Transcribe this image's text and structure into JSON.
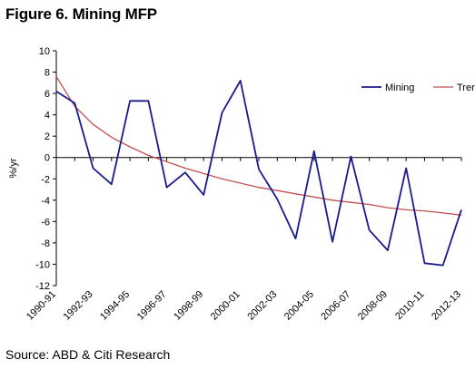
{
  "title": "Figure 6. Mining MFP",
  "source": "Source: ABD & Citi Research",
  "chart_data": {
    "type": "line",
    "ylabel": "%/yr",
    "xlabel": "",
    "ylim": [
      -12,
      10
    ],
    "yticks": [
      10,
      8,
      6,
      4,
      2,
      0,
      -2,
      -4,
      -6,
      -8,
      -10,
      -12
    ],
    "categories": [
      "1990-91",
      "1991-92",
      "1992-93",
      "1993-94",
      "1994-95",
      "1995-96",
      "1996-97",
      "1997-98",
      "1998-99",
      "1999-00",
      "2000-01",
      "2001-02",
      "2002-03",
      "2003-04",
      "2004-05",
      "2005-06",
      "2006-07",
      "2007-08",
      "2008-09",
      "2009-10",
      "2010-11",
      "2011-12",
      "2012-13"
    ],
    "x_tick_labels": [
      "1990-91",
      "1992-93",
      "1994-95",
      "1996-97",
      "1998-99",
      "2000-01",
      "2002-03",
      "2004-05",
      "2006-07",
      "2008-09",
      "2010-11",
      "2012-13"
    ],
    "legend_position": "top-right",
    "grid": false,
    "series": [
      {
        "name": "Mining",
        "color": "#1a1a8c",
        "values": [
          6.2,
          5.1,
          -1.0,
          -2.5,
          5.3,
          5.3,
          -2.8,
          -1.4,
          -3.5,
          4.2,
          7.2,
          -1.1,
          -3.9,
          -7.6,
          0.6,
          -7.9,
          0.1,
          -6.8,
          -8.7,
          -1.0,
          -9.9,
          -10.1,
          -4.9
        ]
      },
      {
        "name": "Trend",
        "color": "#c0504d",
        "values": [
          7.6,
          4.8,
          3.1,
          1.9,
          1.0,
          0.2,
          -0.4,
          -1.0,
          -1.5,
          -2.0,
          -2.4,
          -2.8,
          -3.1,
          -3.4,
          -3.7,
          -4.0,
          -4.2,
          -4.4,
          -4.7,
          -4.9,
          -5.0,
          -5.2,
          -5.4
        ]
      }
    ]
  }
}
